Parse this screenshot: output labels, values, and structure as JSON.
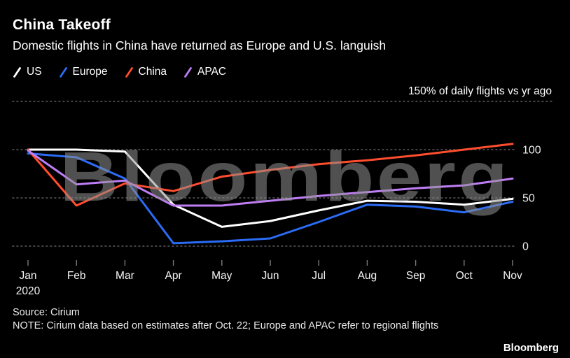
{
  "header": {
    "title": "China Takeoff",
    "subtitle": "Domestic flights in China have returned as Europe and U.S. languish"
  },
  "legend": [
    {
      "label": "US",
      "color": "#ffffff"
    },
    {
      "label": "Europe",
      "color": "#2b6cf4"
    },
    {
      "label": "China",
      "color": "#ff4d2e"
    },
    {
      "label": "APAC",
      "color": "#bf7ef5"
    }
  ],
  "chart_data": {
    "type": "line",
    "x": [
      "Jan",
      "Feb",
      "Mar",
      "Apr",
      "May",
      "Jun",
      "Jul",
      "Aug",
      "Sep",
      "Oct",
      "Nov"
    ],
    "x_sub_label": "2020",
    "annotation": "150% of daily flights vs yr ago",
    "ylim": [
      0,
      150
    ],
    "yticks": [
      0,
      50,
      100,
      150
    ],
    "yaxis_side": "right",
    "grid": "dotted-horizontal",
    "watermark": "Bloomberg",
    "series": [
      {
        "name": "US",
        "color": "#ffffff",
        "values": [
          100,
          100,
          98,
          43,
          20,
          26,
          37,
          47,
          46,
          43,
          49
        ]
      },
      {
        "name": "Europe",
        "color": "#2b6cf4",
        "values": [
          96,
          92,
          70,
          3,
          5,
          8,
          25,
          43,
          41,
          35,
          46
        ]
      },
      {
        "name": "China",
        "color": "#ff4d2e",
        "values": [
          100,
          42,
          65,
          57,
          72,
          79,
          85,
          89,
          94,
          100,
          106
        ]
      },
      {
        "name": "APAC",
        "color": "#bf7ef5",
        "values": [
          99,
          64,
          68,
          42,
          42,
          47,
          52,
          56,
          60,
          63,
          70
        ]
      }
    ]
  },
  "footer": {
    "source": "Source: Cirium",
    "note": "NOTE: Cirium data based on estimates after Oct. 22; Europe and APAC refer to regional flights",
    "logo": "Bloomberg"
  }
}
